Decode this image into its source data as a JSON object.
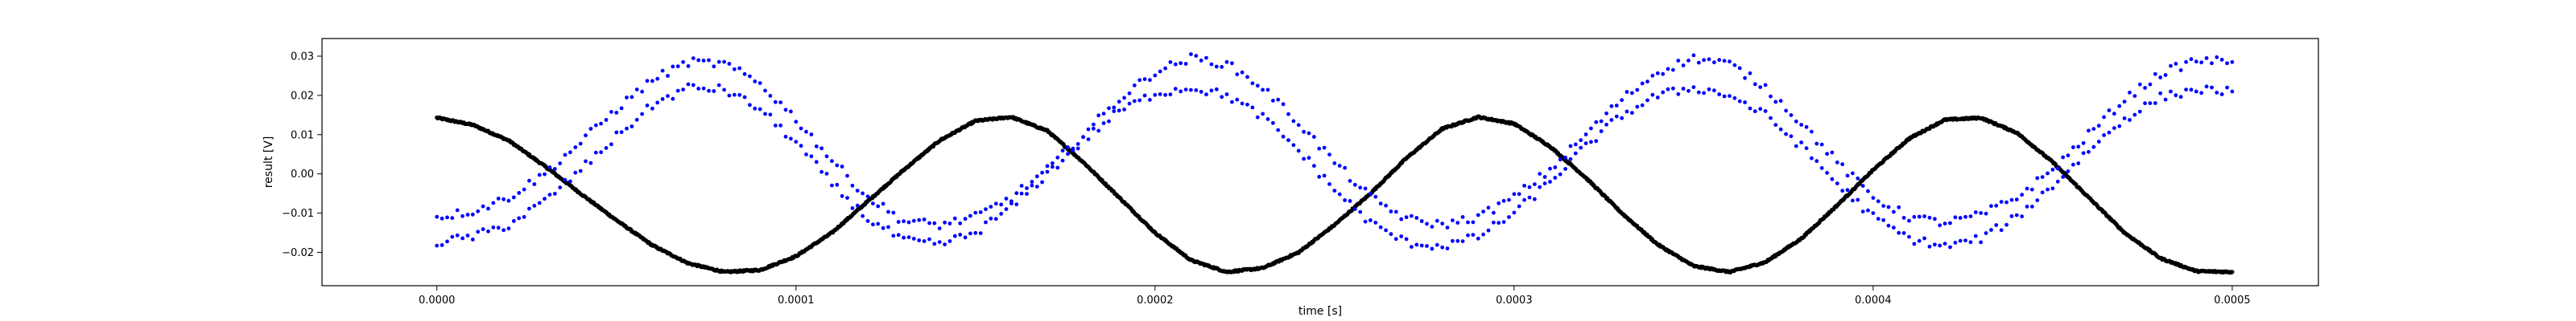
{
  "chart_data": {
    "type": "scatter",
    "xlabel": "time [s]",
    "ylabel": "result [V]",
    "xlim": [
      -3.2e-05,
      0.000524
    ],
    "ylim": [
      -0.0285,
      0.0345
    ],
    "grid": false,
    "legend": "none",
    "xticks": [
      {
        "value": 0.0,
        "label": "0.0000"
      },
      {
        "value": 0.0001,
        "label": "0.0001"
      },
      {
        "value": 0.0002,
        "label": "0.0002"
      },
      {
        "value": 0.0003,
        "label": "0.0003"
      },
      {
        "value": 0.0004,
        "label": "0.0004"
      },
      {
        "value": 0.0005,
        "label": "0.0005"
      }
    ],
    "yticks": [
      {
        "value": -0.02,
        "label": "−0.02"
      },
      {
        "value": -0.01,
        "label": "−0.01"
      },
      {
        "value": 0.0,
        "label": "0.00"
      },
      {
        "value": 0.01,
        "label": "0.01"
      },
      {
        "value": 0.02,
        "label": "0.02"
      },
      {
        "value": 0.03,
        "label": "0.03"
      }
    ],
    "series": [
      {
        "color": "#000000",
        "marker": "dot",
        "points": [
          [
            0.0,
            0.0143
          ],
          [
            1e-05,
            0.0125
          ],
          [
            2e-05,
            0.0085
          ],
          [
            3e-05,
            0.002
          ],
          [
            4e-05,
            -0.005
          ],
          [
            5e-05,
            -0.0118
          ],
          [
            6e-05,
            -0.0182
          ],
          [
            7e-05,
            -0.0228
          ],
          [
            8e-05,
            -0.025
          ],
          [
            9e-05,
            -0.0245
          ],
          [
            0.0001,
            -0.021
          ],
          [
            0.00011,
            -0.015
          ],
          [
            0.00012,
            -0.007
          ],
          [
            0.00013,
            0.001
          ],
          [
            0.00014,
            0.0085
          ],
          [
            0.00015,
            0.0135
          ],
          [
            0.00016,
            0.0145
          ],
          [
            0.00017,
            0.011
          ],
          [
            0.00018,
            0.003
          ],
          [
            0.00019,
            -0.006
          ],
          [
            0.0002,
            -0.015
          ],
          [
            0.00021,
            -0.022
          ],
          [
            0.00022,
            -0.025
          ],
          [
            0.00023,
            -0.024
          ],
          [
            0.00024,
            -0.02
          ],
          [
            0.00025,
            -0.013
          ],
          [
            0.00026,
            -0.005
          ],
          [
            0.00027,
            0.004
          ],
          [
            0.00028,
            0.0115
          ],
          [
            0.00029,
            0.0145
          ],
          [
            0.0003,
            0.0128
          ],
          [
            0.00031,
            0.007
          ],
          [
            0.00032,
            -0.001
          ],
          [
            0.00033,
            -0.01
          ],
          [
            0.00034,
            -0.018
          ],
          [
            0.00035,
            -0.0235
          ],
          [
            0.00036,
            -0.025
          ],
          [
            0.00037,
            -0.0225
          ],
          [
            0.00038,
            -0.0165
          ],
          [
            0.00039,
            -0.008
          ],
          [
            0.0004,
            0.001
          ],
          [
            0.00041,
            0.009
          ],
          [
            0.00042,
            0.0138
          ],
          [
            0.00043,
            0.0143
          ],
          [
            0.00044,
            0.0105
          ],
          [
            0.00045,
            0.003
          ],
          [
            0.00046,
            -0.006
          ],
          [
            0.00047,
            -0.015
          ],
          [
            0.00048,
            -0.0215
          ],
          [
            0.00049,
            -0.0248
          ],
          [
            0.0005,
            -0.025
          ]
        ]
      },
      {
        "color": "#0000ff",
        "marker": "dot",
        "points": [
          [
            0.0,
            -0.011
          ],
          [
            1e-05,
            -0.0095
          ],
          [
            2e-05,
            -0.006
          ],
          [
            3e-05,
            0.0
          ],
          [
            4e-05,
            0.008
          ],
          [
            5e-05,
            0.0165
          ],
          [
            6e-05,
            0.024
          ],
          [
            7e-05,
            0.0285
          ],
          [
            8e-05,
            0.028
          ],
          [
            9e-05,
            0.023
          ],
          [
            0.0001,
            0.014
          ],
          [
            0.00011,
            0.0035
          ],
          [
            0.00012,
            -0.006
          ],
          [
            0.00013,
            -0.012
          ],
          [
            0.00014,
            -0.013
          ],
          [
            0.00015,
            -0.011
          ],
          [
            0.00016,
            -0.006
          ],
          [
            0.00017,
            0.001
          ],
          [
            0.00018,
            0.01
          ],
          [
            0.00019,
            0.019
          ],
          [
            0.0002,
            0.026
          ],
          [
            0.00021,
            0.0295
          ],
          [
            0.00022,
            0.028
          ],
          [
            0.00023,
            0.022
          ],
          [
            0.00024,
            0.013
          ],
          [
            0.00025,
            0.003
          ],
          [
            0.00026,
            -0.006
          ],
          [
            0.00027,
            -0.0115
          ],
          [
            0.00028,
            -0.013
          ],
          [
            0.00029,
            -0.011
          ],
          [
            0.0003,
            -0.006
          ],
          [
            0.00031,
            0.001
          ],
          [
            0.00032,
            0.01
          ],
          [
            0.00033,
            0.019
          ],
          [
            0.00034,
            0.026
          ],
          [
            0.00035,
            0.0295
          ],
          [
            0.00036,
            0.028
          ],
          [
            0.00037,
            0.022
          ],
          [
            0.00038,
            0.013
          ],
          [
            0.00039,
            0.003
          ],
          [
            0.0004,
            -0.006
          ],
          [
            0.00041,
            -0.011
          ],
          [
            0.00042,
            -0.0125
          ],
          [
            0.00043,
            -0.0105
          ],
          [
            0.00044,
            -0.006
          ],
          [
            0.00045,
            0.001
          ],
          [
            0.00046,
            0.01
          ],
          [
            0.00047,
            0.019
          ],
          [
            0.00048,
            0.0255
          ],
          [
            0.00049,
            0.029
          ],
          [
            0.0005,
            0.0285
          ]
        ]
      },
      {
        "color": "#0000ff",
        "marker": "dot",
        "points": [
          [
            0.0,
            -0.0175
          ],
          [
            1e-05,
            -0.016
          ],
          [
            2e-05,
            -0.013
          ],
          [
            3e-05,
            -0.007
          ],
          [
            4e-05,
            0.001
          ],
          [
            5e-05,
            0.0095
          ],
          [
            6e-05,
            0.0175
          ],
          [
            7e-05,
            0.022
          ],
          [
            8e-05,
            0.0215
          ],
          [
            9e-05,
            0.0165
          ],
          [
            0.0001,
            0.008
          ],
          [
            0.00011,
            -0.0025
          ],
          [
            0.00012,
            -0.0115
          ],
          [
            0.00013,
            -0.017
          ],
          [
            0.00014,
            -0.018
          ],
          [
            0.00015,
            -0.015
          ],
          [
            0.00016,
            -0.0085
          ],
          [
            0.00017,
            0.0
          ],
          [
            0.00018,
            0.0085
          ],
          [
            0.00019,
            0.016
          ],
          [
            0.0002,
            0.0205
          ],
          [
            0.00021,
            0.022
          ],
          [
            0.00022,
            0.02
          ],
          [
            0.00023,
            0.0145
          ],
          [
            0.00024,
            0.006
          ],
          [
            0.00025,
            -0.004
          ],
          [
            0.00026,
            -0.0125
          ],
          [
            0.00027,
            -0.0175
          ],
          [
            0.00028,
            -0.0185
          ],
          [
            0.00029,
            -0.016
          ],
          [
            0.0003,
            -0.01
          ],
          [
            0.00031,
            -0.002
          ],
          [
            0.00032,
            0.007
          ],
          [
            0.00033,
            0.015
          ],
          [
            0.00034,
            0.02
          ],
          [
            0.00035,
            0.022
          ],
          [
            0.00036,
            0.02
          ],
          [
            0.00037,
            0.015
          ],
          [
            0.00038,
            0.007
          ],
          [
            0.00039,
            -0.0025
          ],
          [
            0.0004,
            -0.011
          ],
          [
            0.00041,
            -0.0165
          ],
          [
            0.00042,
            -0.0185
          ],
          [
            0.00043,
            -0.0165
          ],
          [
            0.00044,
            -0.011
          ],
          [
            0.00045,
            -0.003
          ],
          [
            0.00046,
            0.006
          ],
          [
            0.00047,
            0.014
          ],
          [
            0.00048,
            0.0195
          ],
          [
            0.00049,
            0.0215
          ],
          [
            0.0005,
            0.021
          ]
        ]
      }
    ]
  }
}
